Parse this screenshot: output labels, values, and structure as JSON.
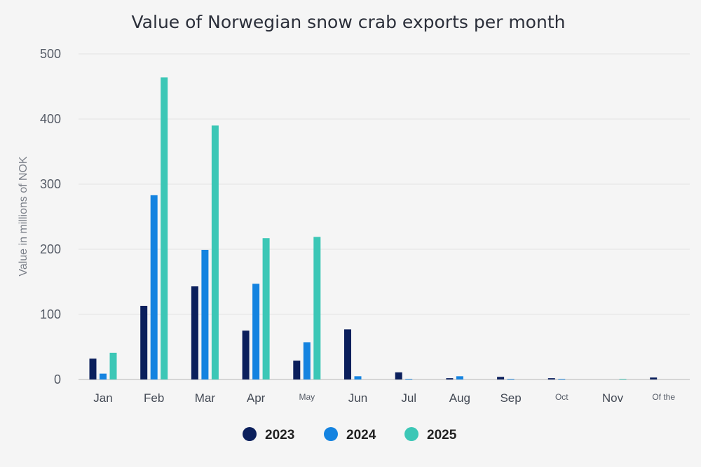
{
  "chart_data": {
    "type": "bar",
    "title": "Value of Norwegian snow crab exports per month",
    "ylabel": "Value in millions of NOK",
    "xlabel": "",
    "ylim": [
      0,
      500
    ],
    "yticks": [
      "0",
      "100",
      "200",
      "300",
      "400",
      "500"
    ],
    "grid": true,
    "legend_position": "bottom",
    "categories": [
      "Jan",
      "Feb",
      "Mar",
      "Apr",
      "May",
      "Jun",
      "Jul",
      "Aug",
      "Sep",
      "Oct",
      "Nov",
      "Of the"
    ],
    "series": [
      {
        "name": "2023",
        "color": "#0b1f5c",
        "values": [
          32,
          113,
          143,
          75,
          29,
          77,
          11,
          2,
          4,
          2,
          0,
          3
        ]
      },
      {
        "name": "2024",
        "color": "#1483e0",
        "values": [
          9,
          283,
          199,
          147,
          57,
          5,
          1,
          5,
          1,
          1,
          0,
          0
        ]
      },
      {
        "name": "2025",
        "color": "#3cc7b6",
        "values": [
          41,
          464,
          390,
          217,
          219,
          0,
          0,
          0,
          0,
          0,
          1,
          0
        ]
      }
    ]
  }
}
